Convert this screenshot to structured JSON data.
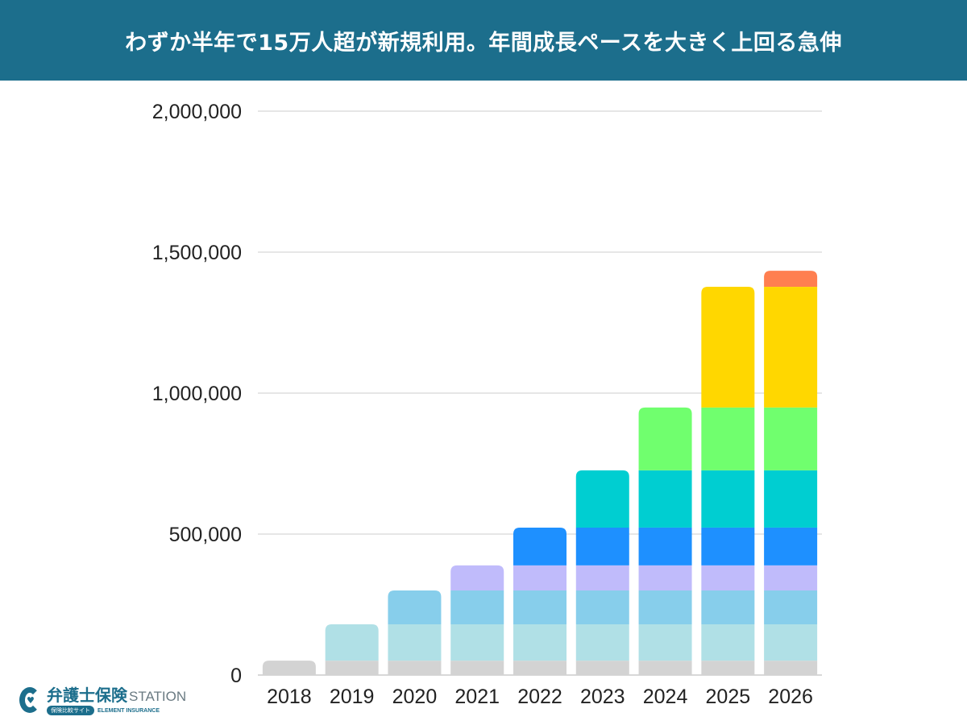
{
  "header": {
    "title": "わずか半年で15万人超が新規利用。年間成長ペースを大きく上回る急伸"
  },
  "logo": {
    "name_jp": "弁護士保険",
    "name_en": "STATION",
    "badge": "保険比較サイト",
    "company": "ELEMENT INSURANCE",
    "brand_color": "#1c6e8c"
  },
  "chart_data": {
    "type": "bar",
    "stacked": true,
    "title": "わずか半年で15万人超が新規利用。年間成長ペースを大きく上回る急伸",
    "xlabel": "",
    "ylabel": "",
    "categories": [
      "2018",
      "2019",
      "2020",
      "2021",
      "2022",
      "2023",
      "2024",
      "2025",
      "2026"
    ],
    "ylim": [
      0,
      2000000
    ],
    "yticks": [
      0,
      500000,
      1000000,
      1500000,
      2000000
    ],
    "ytick_labels": [
      "0",
      "500,000",
      "1,000,000",
      "1,500,000",
      "2,000,000"
    ],
    "grid": true,
    "legend": "none",
    "series": [
      {
        "name": "2018",
        "color": "#d3d3d3",
        "values": [
          51000,
          51000,
          51000,
          51000,
          51000,
          51000,
          51000,
          51000,
          51000
        ]
      },
      {
        "name": "2019",
        "color": "#b0e0e6",
        "values": [
          0,
          129000,
          129000,
          129000,
          129000,
          129000,
          129000,
          129000,
          129000
        ]
      },
      {
        "name": "2020",
        "color": "#87ceeb",
        "values": [
          0,
          0,
          120000,
          120000,
          120000,
          120000,
          120000,
          120000,
          120000
        ]
      },
      {
        "name": "2021",
        "color": "#c0bbfb",
        "values": [
          0,
          0,
          0,
          89000,
          89000,
          89000,
          89000,
          89000,
          89000
        ]
      },
      {
        "name": "2022",
        "color": "#1e90ff",
        "values": [
          0,
          0,
          0,
          0,
          134000,
          134000,
          134000,
          134000,
          134000
        ]
      },
      {
        "name": "2023",
        "color": "#00ced1",
        "values": [
          0,
          0,
          0,
          0,
          0,
          203000,
          203000,
          203000,
          203000
        ]
      },
      {
        "name": "2024",
        "color": "#70ff6e",
        "values": [
          0,
          0,
          0,
          0,
          0,
          0,
          223000,
          223000,
          223000
        ]
      },
      {
        "name": "2025",
        "color": "#ffd700",
        "values": [
          0,
          0,
          0,
          0,
          0,
          0,
          0,
          428000,
          428000
        ]
      },
      {
        "name": "2026",
        "color": "#ff7f50",
        "values": [
          0,
          0,
          0,
          0,
          0,
          0,
          0,
          0,
          57000
        ]
      }
    ],
    "totals": [
      51000,
      180000,
      300000,
      389000,
      523000,
      726000,
      949000,
      1377000,
      1434000
    ]
  }
}
